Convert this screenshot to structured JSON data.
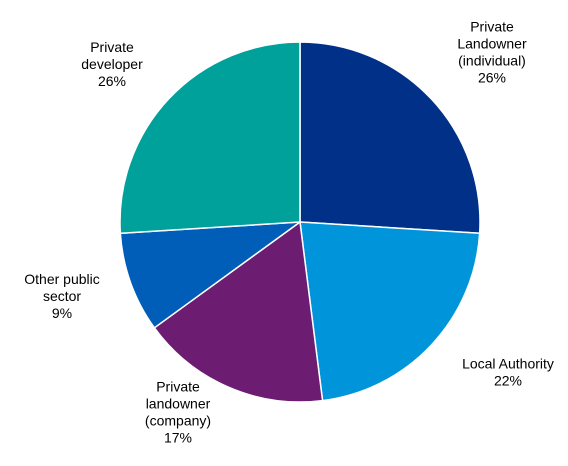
{
  "chart_data": {
    "type": "pie",
    "title": "",
    "start_angle_deg": 0,
    "direction": "clockwise",
    "slices": [
      {
        "label": "Private Landowner (individual)",
        "label_lines": [
          "Private",
          "Landowner",
          "(individual)"
        ],
        "value": 26,
        "value_text": "26%",
        "color": "#003087"
      },
      {
        "label": "Local Authority",
        "label_lines": [
          "Local Authority"
        ],
        "value": 22,
        "value_text": "22%",
        "color": "#0095DA"
      },
      {
        "label": "Private landowner (company)",
        "label_lines": [
          "Private",
          "landowner",
          "(company)"
        ],
        "value": 17,
        "value_text": "17%",
        "color": "#6C1D72"
      },
      {
        "label": "Other public sector",
        "label_lines": [
          "Other public",
          "sector"
        ],
        "value": 9,
        "value_text": "9%",
        "color": "#005EB8"
      },
      {
        "label": "Private developer",
        "label_lines": [
          "Private",
          "developer"
        ],
        "value": 26,
        "value_text": "26%",
        "color": "#00A09B"
      }
    ]
  }
}
